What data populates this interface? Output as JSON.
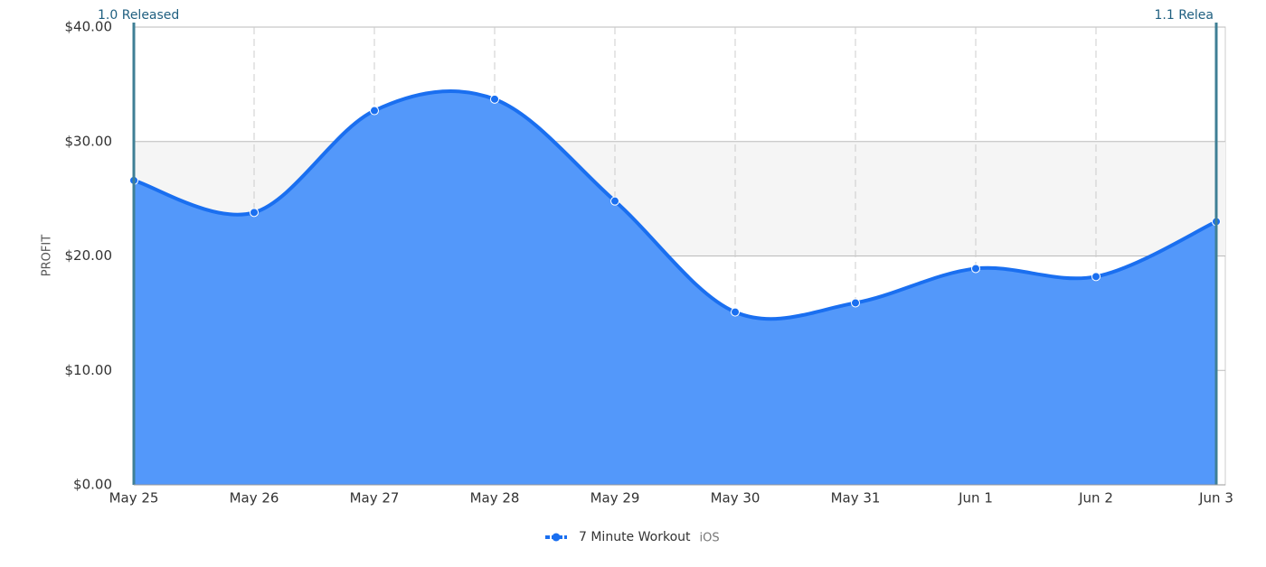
{
  "chart_data": {
    "type": "area",
    "y_label": "PROFIT",
    "categories": [
      "May 25",
      "May 26",
      "May 27",
      "May 28",
      "May 29",
      "May 30",
      "May 31",
      "Jun 1",
      "Jun 2",
      "Jun 3"
    ],
    "series": [
      {
        "name": "7 Minute Workout",
        "platform": "iOS",
        "color": "#1a6ff0",
        "fill": "#5398fa",
        "values": [
          26.6,
          23.8,
          32.7,
          33.7,
          24.8,
          15.1,
          15.9,
          18.9,
          18.2,
          23.0
        ]
      }
    ],
    "ylim": [
      0,
      40
    ],
    "yticks": [
      {
        "value": 0,
        "label": "$0.00"
      },
      {
        "value": 10,
        "label": "$10.00"
      },
      {
        "value": 20,
        "label": "$20.00"
      },
      {
        "value": 30,
        "label": "$30.00"
      },
      {
        "value": 40,
        "label": "$40.00"
      }
    ],
    "band": [
      20,
      30
    ],
    "annotations": [
      {
        "text": "1.0 Released",
        "at": "May 25"
      },
      {
        "text": "1.1 Relea",
        "at": "Jun 3"
      }
    ],
    "grid": true
  }
}
